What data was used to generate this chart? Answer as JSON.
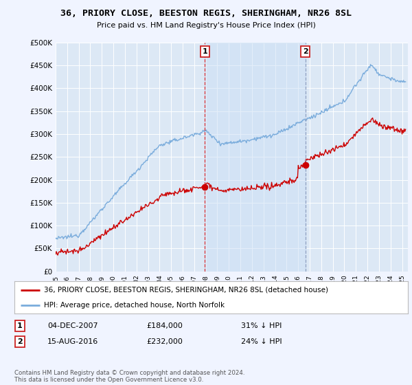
{
  "title": "36, PRIORY CLOSE, BEESTON REGIS, SHERINGHAM, NR26 8SL",
  "subtitle": "Price paid vs. HM Land Registry's House Price Index (HPI)",
  "background_color": "#f0f4ff",
  "plot_bg_color": "#dce8f5",
  "shaded_region_color": "#ccdff5",
  "ylim": [
    0,
    500000
  ],
  "yticks": [
    0,
    50000,
    100000,
    150000,
    200000,
    250000,
    300000,
    350000,
    400000,
    450000,
    500000
  ],
  "ytick_labels": [
    "£0",
    "£50K",
    "£100K",
    "£150K",
    "£200K",
    "£250K",
    "£300K",
    "£350K",
    "£400K",
    "£450K",
    "£500K"
  ],
  "sale1_date": 2007.92,
  "sale1_price": 184000,
  "sale2_date": 2016.62,
  "sale2_price": 232000,
  "legend_property": "36, PRIORY CLOSE, BEESTON REGIS, SHERINGHAM, NR26 8SL (detached house)",
  "legend_hpi": "HPI: Average price, detached house, North Norfolk",
  "footer": "Contains HM Land Registry data © Crown copyright and database right 2024.\nThis data is licensed under the Open Government Licence v3.0.",
  "line_color_property": "#cc0000",
  "line_color_hpi": "#7aacdc",
  "table_dates": [
    "04-DEC-2007",
    "15-AUG-2016"
  ],
  "table_prices": [
    "£184,000",
    "£232,000"
  ],
  "table_pct": [
    "31% ↓ HPI",
    "24% ↓ HPI"
  ]
}
